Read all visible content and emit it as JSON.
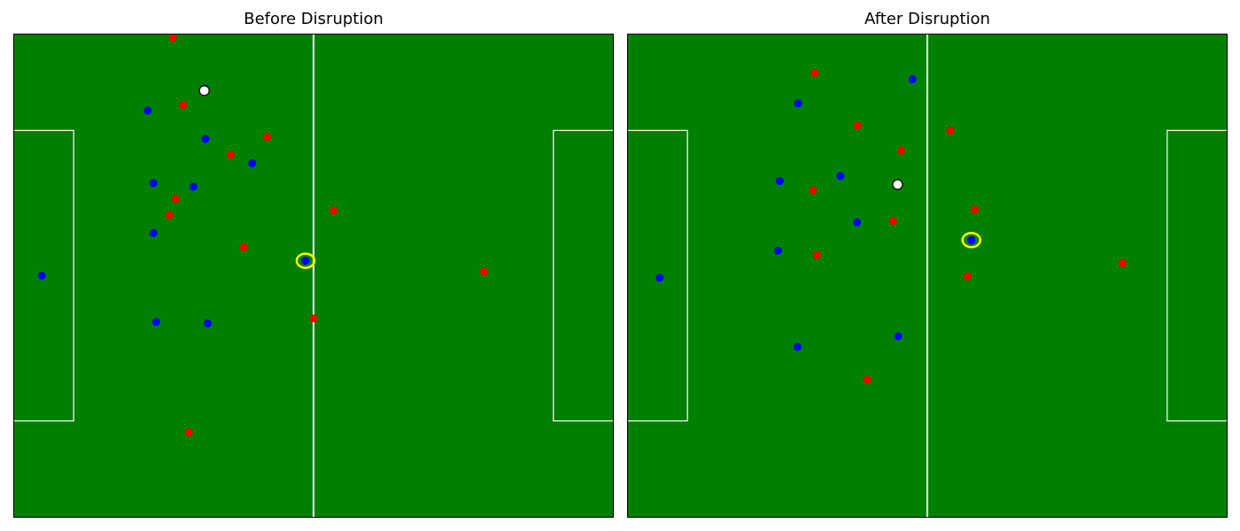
{
  "chart_data": [
    {
      "type": "scatter",
      "title": "Before Disruption",
      "xlim": [
        0,
        105
      ],
      "ylim": [
        0,
        68
      ],
      "grid": false,
      "pitch_color": "#008000",
      "line_color": "#ffffff",
      "ball": {
        "x": 33.4,
        "y": 60.0
      },
      "highlighted_player": {
        "team": "blue",
        "x": 51.1,
        "y": 36.1
      },
      "series": [
        {
          "color": "#0000ff",
          "points": [
            {
              "x": 5.0,
              "y": 34.0
            },
            {
              "x": 23.5,
              "y": 57.2
            },
            {
              "x": 33.6,
              "y": 53.2
            },
            {
              "x": 24.5,
              "y": 47.0
            },
            {
              "x": 31.5,
              "y": 46.5
            },
            {
              "x": 41.8,
              "y": 49.8
            },
            {
              "x": 24.5,
              "y": 40.0
            },
            {
              "x": 25.0,
              "y": 27.5
            },
            {
              "x": 34.0,
              "y": 27.3
            },
            {
              "x": 33.5,
              "y": 60.3
            },
            {
              "x": 51.1,
              "y": 36.1
            }
          ]
        },
        {
          "color": "#ff0000",
          "points": [
            {
              "x": 27.9,
              "y": 67.4
            },
            {
              "x": 29.7,
              "y": 58.0
            },
            {
              "x": 44.4,
              "y": 53.5
            },
            {
              "x": 38.0,
              "y": 51.0
            },
            {
              "x": 28.4,
              "y": 44.8
            },
            {
              "x": 27.3,
              "y": 42.5
            },
            {
              "x": 40.3,
              "y": 38.0
            },
            {
              "x": 56.0,
              "y": 43.2
            },
            {
              "x": 82.3,
              "y": 34.6
            },
            {
              "x": 52.5,
              "y": 28.0
            },
            {
              "x": 30.7,
              "y": 12.0
            }
          ]
        }
      ]
    },
    {
      "type": "scatter",
      "title": "After Disruption",
      "xlim": [
        0,
        105
      ],
      "ylim": [
        0,
        68
      ],
      "grid": false,
      "pitch_color": "#008000",
      "line_color": "#ffffff",
      "ball": {
        "x": 47.3,
        "y": 46.8
      },
      "highlighted_player": {
        "team": "blue",
        "x": 60.2,
        "y": 39.0
      },
      "series": [
        {
          "color": "#0000ff",
          "points": [
            {
              "x": 5.7,
              "y": 33.7
            },
            {
              "x": 29.9,
              "y": 58.2
            },
            {
              "x": 49.9,
              "y": 61.6
            },
            {
              "x": 26.7,
              "y": 47.3
            },
            {
              "x": 37.3,
              "y": 48.0
            },
            {
              "x": 40.2,
              "y": 41.5
            },
            {
              "x": 26.4,
              "y": 37.5
            },
            {
              "x": 29.8,
              "y": 24.0
            },
            {
              "x": 47.4,
              "y": 25.5
            },
            {
              "x": 60.2,
              "y": 39.0
            }
          ]
        },
        {
          "color": "#ff0000",
          "points": [
            {
              "x": 32.8,
              "y": 62.5
            },
            {
              "x": 40.3,
              "y": 55.1
            },
            {
              "x": 56.5,
              "y": 54.4
            },
            {
              "x": 47.9,
              "y": 51.6
            },
            {
              "x": 32.5,
              "y": 46.0
            },
            {
              "x": 46.5,
              "y": 41.7
            },
            {
              "x": 60.8,
              "y": 43.3
            },
            {
              "x": 33.2,
              "y": 36.9
            },
            {
              "x": 59.5,
              "y": 33.9
            },
            {
              "x": 86.6,
              "y": 35.8
            },
            {
              "x": 42.0,
              "y": 19.4
            }
          ]
        }
      ]
    }
  ]
}
